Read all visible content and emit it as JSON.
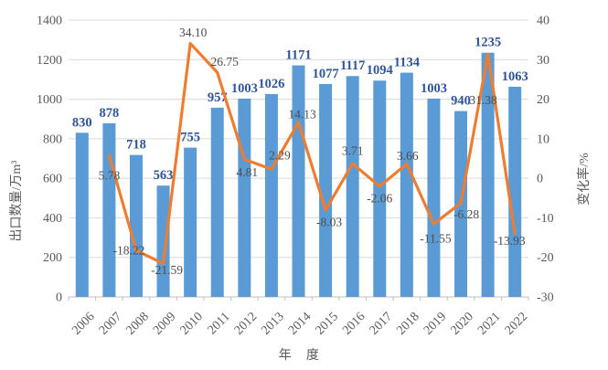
{
  "chart_data": {
    "type": "combo-bar-line",
    "title": "",
    "categories": [
      "2006",
      "2007",
      "2008",
      "2009",
      "2010",
      "2011",
      "2012",
      "2013",
      "2014",
      "2015",
      "2016",
      "2017",
      "2018",
      "2019",
      "2020",
      "2021",
      "2022"
    ],
    "series": [
      {
        "name": "出口数量",
        "type": "bar",
        "axis": "left",
        "values": [
          830,
          878,
          718,
          563,
          755,
          957,
          1003,
          1026,
          1171,
          1077,
          1117,
          1094,
          1134,
          1003,
          940,
          1235,
          1063
        ],
        "labels": [
          "830",
          "878",
          "718",
          "563",
          "755",
          "957",
          "1003",
          "1026",
          "1171",
          "1077",
          "1117",
          "1094",
          "1134",
          "1003",
          "940",
          "1235",
          "1063"
        ]
      },
      {
        "name": "变化率",
        "type": "line",
        "axis": "right",
        "start_index": 1,
        "values": [
          5.78,
          -18.22,
          -21.59,
          34.1,
          26.75,
          4.81,
          2.29,
          14.13,
          -8.03,
          3.71,
          -2.06,
          3.66,
          -11.55,
          -6.28,
          31.38,
          -13.93
        ],
        "labels": [
          "5.78",
          "-18.22",
          "-21.59",
          "34.10",
          "26.75",
          "4.81",
          "2.29",
          "14.13",
          "-8.03",
          "3.71",
          "-2.06",
          "3.66",
          "-11.55",
          "-6.28",
          "31.38",
          "-13.93"
        ]
      }
    ],
    "left_axis": {
      "title": "出口数量/万m³",
      "min": 0,
      "max": 1400,
      "step": 200,
      "tick_labels": [
        "0",
        "200",
        "400",
        "600",
        "800",
        "1000",
        "1200",
        "1400"
      ]
    },
    "right_axis": {
      "title": "变化率/%",
      "min": -30,
      "max": 40,
      "step": 10,
      "tick_labels": [
        "-30",
        "-20",
        "-10",
        "0",
        "10",
        "20",
        "30",
        "40"
      ]
    },
    "x_axis": {
      "title": "年 度"
    },
    "grid": true,
    "legend": "none"
  },
  "colors": {
    "bar": "#5B9BD5",
    "line": "#ED7D31",
    "bar_label": "#2F5597",
    "line_label": "#4d4d4d",
    "tick_label": "#595959",
    "grid": "#D9D9D9",
    "axis": "#BFBFBF",
    "background": "#FFFFFF"
  }
}
